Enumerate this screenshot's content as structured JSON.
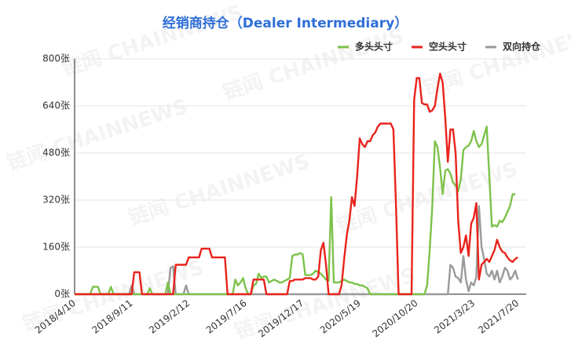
{
  "chart_data": {
    "type": "line",
    "title": "经销商持仓（Dealer Intermediary）",
    "watermark": "链闻 CHAINNEWS",
    "legend": "top-right",
    "grid": true,
    "ylim": [
      0,
      800
    ],
    "yticks": [
      {
        "value": 0,
        "label": "0张"
      },
      {
        "value": 160,
        "label": "160张"
      },
      {
        "value": 320,
        "label": "320张"
      },
      {
        "value": 480,
        "label": "480张"
      },
      {
        "value": 640,
        "label": "640张"
      },
      {
        "value": 800,
        "label": "800张"
      }
    ],
    "categories": [
      "2018/4/10",
      null,
      null,
      null,
      null,
      null,
      null,
      null,
      null,
      null,
      null,
      null,
      null,
      null,
      null,
      null,
      null,
      null,
      null,
      null,
      null,
      null,
      "2018/9/11",
      null,
      null,
      null,
      null,
      null,
      null,
      null,
      null,
      null,
      null,
      null,
      null,
      null,
      null,
      null,
      null,
      null,
      null,
      null,
      null,
      null,
      "2019/2/12",
      null,
      null,
      null,
      null,
      null,
      null,
      null,
      null,
      null,
      null,
      null,
      null,
      null,
      null,
      null,
      null,
      null,
      null,
      null,
      null,
      null,
      "2019/7/16",
      null,
      null,
      null,
      null,
      null,
      null,
      null,
      null,
      null,
      null,
      null,
      null,
      null,
      null,
      null,
      null,
      null,
      null,
      null,
      null,
      null,
      "2019/12/17",
      null,
      null,
      null,
      null,
      null,
      null,
      null,
      null,
      null,
      null,
      null,
      null,
      null,
      null,
      null,
      null,
      null,
      null,
      null,
      null,
      null,
      "2020/5/19",
      null,
      null,
      null,
      null,
      null,
      null,
      null,
      null,
      null,
      null,
      null,
      null,
      null,
      null,
      null,
      null,
      null,
      null,
      null,
      null,
      null,
      "2020/10/20",
      null,
      null,
      null,
      null,
      null,
      null,
      null,
      null,
      null,
      null,
      null,
      null,
      null,
      null,
      null,
      null,
      null,
      null,
      null,
      null,
      null,
      "2021/3/23",
      null,
      null,
      null,
      null,
      null,
      null,
      null,
      null,
      null,
      null,
      null,
      null,
      null,
      null,
      null,
      null,
      "2021/7/20"
    ],
    "series": [
      {
        "name": "多头头寸",
        "color": "#7cc24a",
        "values": [
          0,
          0,
          0,
          0,
          0,
          0,
          0,
          25,
          25,
          25,
          0,
          0,
          0,
          0,
          25,
          0,
          0,
          0,
          0,
          0,
          0,
          0,
          0,
          0,
          0,
          0,
          0,
          0,
          0,
          20,
          0,
          0,
          0,
          0,
          0,
          0,
          40,
          0,
          0,
          0,
          0,
          0,
          0,
          0,
          0,
          0,
          0,
          0,
          0,
          0,
          0,
          0,
          0,
          0,
          0,
          0,
          0,
          0,
          0,
          0,
          0,
          0,
          50,
          30,
          40,
          55,
          20,
          0,
          0,
          30,
          35,
          70,
          55,
          60,
          60,
          40,
          45,
          50,
          45,
          40,
          40,
          45,
          50,
          55,
          130,
          135,
          135,
          140,
          135,
          65,
          65,
          65,
          70,
          80,
          75,
          70,
          60,
          50,
          45,
          330,
          40,
          40,
          40,
          45,
          50,
          45,
          40,
          40,
          35,
          35,
          30,
          30,
          25,
          20,
          0,
          0,
          0,
          0,
          0,
          0,
          0,
          0,
          0,
          0,
          0,
          0,
          0,
          0,
          0,
          0,
          0,
          0,
          0,
          0,
          0,
          0,
          30,
          150,
          300,
          520,
          500,
          430,
          340,
          420,
          425,
          410,
          380,
          370,
          350,
          390,
          490,
          500,
          505,
          520,
          555,
          520,
          500,
          510,
          540,
          570,
          400,
          230,
          235,
          230,
          250,
          245,
          260,
          280,
          300,
          340,
          340,
          null
        ]
      },
      {
        "name": "空头头寸",
        "color": "#e8231c",
        "values": [
          0,
          0,
          0,
          0,
          0,
          0,
          0,
          0,
          0,
          0,
          0,
          0,
          0,
          0,
          0,
          0,
          0,
          0,
          0,
          0,
          0,
          0,
          0,
          75,
          75,
          75,
          0,
          0,
          0,
          0,
          0,
          0,
          0,
          0,
          0,
          0,
          0,
          0,
          0,
          100,
          100,
          100,
          100,
          100,
          125,
          125,
          125,
          125,
          125,
          155,
          155,
          155,
          155,
          125,
          125,
          125,
          125,
          125,
          125,
          0,
          0,
          0,
          0,
          0,
          0,
          0,
          0,
          0,
          0,
          50,
          50,
          50,
          50,
          50,
          0,
          0,
          0,
          0,
          0,
          0,
          0,
          0,
          0,
          45,
          45,
          50,
          50,
          50,
          50,
          55,
          55,
          55,
          50,
          50,
          60,
          150,
          175,
          100,
          0,
          0,
          0,
          0,
          0,
          30,
          120,
          200,
          250,
          330,
          300,
          400,
          530,
          510,
          500,
          520,
          520,
          540,
          550,
          570,
          580,
          580,
          580,
          580,
          580,
          560,
          300,
          0,
          0,
          0,
          0,
          0,
          0,
          660,
          735,
          735,
          650,
          645,
          645,
          620,
          625,
          640,
          700,
          750,
          720,
          600,
          450,
          560,
          560,
          480,
          250,
          140,
          160,
          200,
          130,
          240,
          260,
          310,
          50,
          100,
          110,
          120,
          110,
          130,
          150,
          185,
          160,
          145,
          140,
          125,
          115,
          110,
          120,
          125
        ]
      },
      {
        "name": "双向持仓",
        "color": "#9a9a9a",
        "values": [
          0,
          0,
          0,
          0,
          0,
          0,
          0,
          0,
          0,
          0,
          0,
          0,
          0,
          0,
          0,
          0,
          0,
          0,
          0,
          0,
          0,
          0,
          30,
          0,
          0,
          0,
          0,
          0,
          0,
          0,
          0,
          0,
          0,
          0,
          0,
          0,
          0,
          90,
          95,
          0,
          0,
          0,
          0,
          30,
          0,
          0,
          0,
          0,
          0,
          0,
          0,
          0,
          0,
          0,
          0,
          0,
          0,
          0,
          0,
          0,
          0,
          0,
          0,
          0,
          0,
          0,
          0,
          0,
          0,
          0,
          0,
          0,
          0,
          0,
          0,
          0,
          0,
          0,
          0,
          0,
          0,
          0,
          0,
          0,
          0,
          0,
          0,
          0,
          0,
          0,
          0,
          0,
          0,
          0,
          0,
          0,
          0,
          0,
          0,
          0,
          0,
          0,
          0,
          0,
          0,
          0,
          0,
          0,
          0,
          0,
          0,
          0,
          0,
          0,
          0,
          0,
          0,
          0,
          0,
          0,
          0,
          0,
          0,
          0,
          0,
          0,
          0,
          0,
          0,
          0,
          0,
          0,
          0,
          0,
          0,
          0,
          0,
          0,
          0,
          0,
          0,
          0,
          0,
          0,
          0,
          100,
          90,
          60,
          55,
          40,
          130,
          50,
          10,
          40,
          30,
          60,
          300,
          160,
          120,
          70,
          60,
          80,
          50,
          80,
          40,
          60,
          90,
          80,
          50,
          60,
          80,
          50
        ]
      }
    ]
  }
}
